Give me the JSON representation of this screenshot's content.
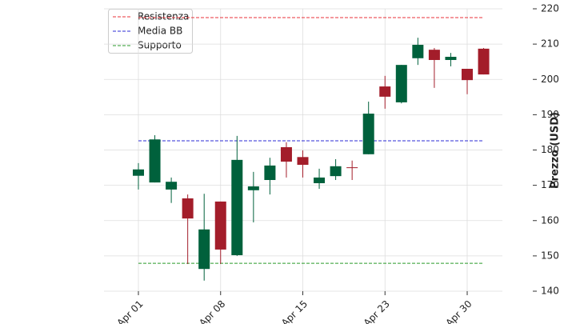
{
  "chart_data": {
    "type": "candlestick",
    "ylabel": "Prezzo (USD)",
    "categories": [
      "Apr 01",
      null,
      null,
      null,
      null,
      "Apr 08",
      null,
      null,
      null,
      null,
      "Apr 15",
      null,
      null,
      null,
      null,
      "Apr 23",
      null,
      null,
      null,
      null,
      "Apr 30",
      null
    ],
    "open": [
      172.7,
      170.8,
      168.8,
      166.3,
      146.3,
      165.4,
      150.2,
      168.6,
      171.5,
      180.8,
      178.0,
      170.6,
      172.6,
      175.1,
      178.8,
      198.0,
      193.5,
      206.0,
      208.4,
      205.5,
      203.0,
      208.7
    ],
    "high": [
      176.3,
      184.2,
      172.2,
      167.4,
      167.6,
      165.4,
      184.0,
      173.8,
      177.8,
      182.2,
      179.9,
      174.7,
      177.4,
      177.0,
      193.7,
      201.0,
      204.1,
      211.8,
      208.9,
      207.5,
      203.0,
      208.9
    ],
    "low": [
      168.8,
      170.8,
      165.0,
      147.7,
      143.0,
      147.7,
      150.0,
      159.5,
      167.4,
      172.2,
      172.2,
      169.0,
      171.5,
      171.5,
      178.8,
      191.7,
      193.2,
      204.1,
      197.6,
      203.7,
      195.8,
      201.4
    ],
    "close": [
      174.5,
      183.0,
      171.0,
      160.6,
      157.5,
      151.8,
      177.2,
      169.7,
      175.6,
      176.7,
      175.8,
      172.2,
      175.4,
      174.9,
      190.3,
      195.1,
      204.1,
      209.8,
      205.5,
      206.4,
      199.8,
      201.4
    ],
    "up_color": "#00613c",
    "down_color": "#a31d2a",
    "lines": [
      {
        "name": "Resistenza",
        "value": 217.5,
        "color": "#e8333a"
      },
      {
        "name": "Media BB",
        "value": 182.6,
        "color": "#2b2bd6"
      },
      {
        "name": "Supporto",
        "value": 147.9,
        "color": "#2a9a2a"
      }
    ],
    "ylim": [
      140,
      220
    ],
    "yticks": [
      140,
      150,
      160,
      170,
      180,
      190,
      200,
      210,
      220
    ],
    "grid": true,
    "legend": "upper left"
  }
}
